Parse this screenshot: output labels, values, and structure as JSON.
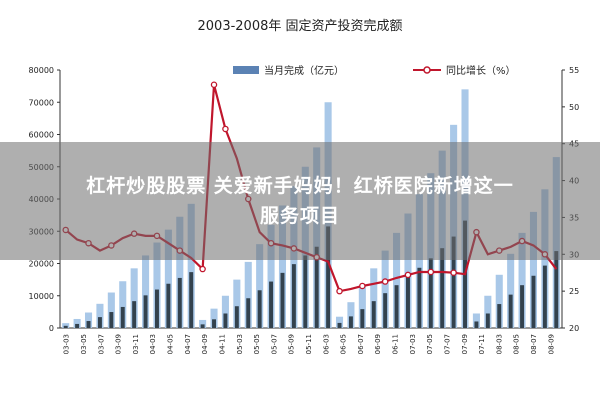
{
  "chart_data": {
    "type": "bar+line",
    "title": "2003-2008年 固定资产投资完成额",
    "legend": {
      "placement": "top",
      "bar_label": "当月完成（亿元）",
      "line_label": "同比增长（%）"
    },
    "y_left": {
      "min": 0,
      "max": 80000,
      "ticks": [
        0,
        10000,
        20000,
        30000,
        40000,
        50000,
        60000,
        70000,
        80000
      ]
    },
    "y_right": {
      "min": 20,
      "max": 55,
      "ticks": [
        20,
        25,
        30,
        35,
        40,
        45,
        50,
        55
      ]
    },
    "x_tick_labels": [
      "03-03",
      "03-05",
      "03-07",
      "03-09",
      "03-11",
      "04-03",
      "04-05",
      "04-07",
      "04-09",
      "04-11",
      "05-03",
      "05-05",
      "05-07",
      "05-09",
      "05-11",
      "06-03",
      "06-05",
      "06-07",
      "06-09",
      "06-11",
      "07-03",
      "07-05",
      "07-07",
      "07-09",
      "07-11",
      "08-03",
      "08-05",
      "08-07",
      "08-09"
    ],
    "bars": [
      1500,
      2800,
      4800,
      7500,
      11000,
      14500,
      18500,
      22500,
      26500,
      30500,
      34500,
      38500,
      2500,
      6000,
      10000,
      15000,
      20500,
      26000,
      32000,
      38000,
      44000,
      50000,
      56000,
      70000,
      3500,
      8000,
      13000,
      18500,
      24000,
      29500,
      35500,
      41500,
      48000,
      55000,
      63000,
      74000,
      4500,
      10000,
      16500,
      23000,
      29500,
      36000,
      43000,
      53000
    ],
    "line": [
      33.3,
      32,
      31.5,
      30.5,
      31.2,
      32.2,
      32.8,
      32.5,
      32.5,
      31.5,
      30.5,
      29.5,
      28,
      53,
      47,
      43,
      37.5,
      33,
      31.5,
      31.2,
      30.8,
      30.2,
      29.6,
      29,
      25,
      25.3,
      25.7,
      26,
      26.3,
      26.8,
      27.2,
      27.6,
      27.6,
      27.6,
      27.5,
      27.3,
      33,
      30,
      30.5,
      31,
      31.8,
      31.2,
      30,
      28
    ]
  },
  "banner": {
    "line1": "杠杆炒股股票 关爱新手妈妈！红桥医院新增这一",
    "line2": "服务项目"
  },
  "colors": {
    "bar_light": "#a9c8e8",
    "bar_dark": "#1f2a33",
    "line": "#c0162c",
    "axis": "#333333"
  }
}
